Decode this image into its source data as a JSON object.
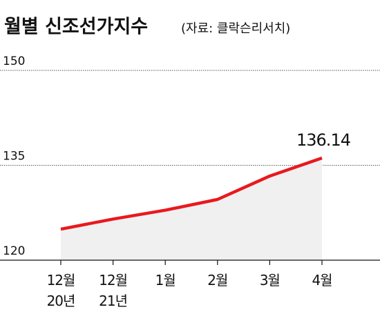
{
  "chart_data": {
    "type": "line",
    "title": "월별 신조선가지수",
    "subtitle": "(자료: 클락슨리서치)",
    "categories": [
      "12월\n20년",
      "12월\n21년",
      "1월",
      "2월",
      "3월",
      "4월"
    ],
    "values": [
      124.9,
      126.5,
      127.9,
      129.6,
      133.3,
      136.14
    ],
    "color": "#e8191e",
    "ylim": [
      120,
      150
    ],
    "yticks": [
      120,
      135,
      150
    ],
    "grid": true
  }
}
